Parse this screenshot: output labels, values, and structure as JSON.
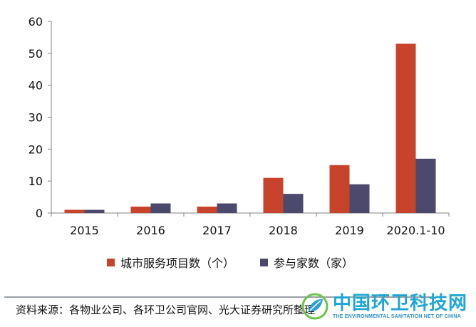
{
  "chart_data": {
    "type": "bar",
    "categories": [
      "2015",
      "2016",
      "2017",
      "2018",
      "2019",
      "2020.1-10"
    ],
    "series": [
      {
        "name": "城市服务项目数（个）",
        "values": [
          1,
          2,
          2,
          11,
          15,
          53
        ],
        "color": "#c7432b"
      },
      {
        "name": "参与家数（家）",
        "values": [
          1,
          3,
          3,
          6,
          9,
          17
        ],
        "color": "#4b4a6c"
      }
    ],
    "ylim": [
      0,
      60
    ],
    "yticks": [
      0,
      10,
      20,
      30,
      40,
      50,
      60
    ],
    "grid": false,
    "legend_position": "bottom",
    "title": "",
    "xlabel": "",
    "ylabel": ""
  },
  "source_text": "资料来源：各物业公司、各环卫公司官网、光大证券研究所整理",
  "watermark": {
    "cn": "中国环卫科技网",
    "en": "THE ENVIRONMENTAL SANITATION NET OF CHINA"
  }
}
